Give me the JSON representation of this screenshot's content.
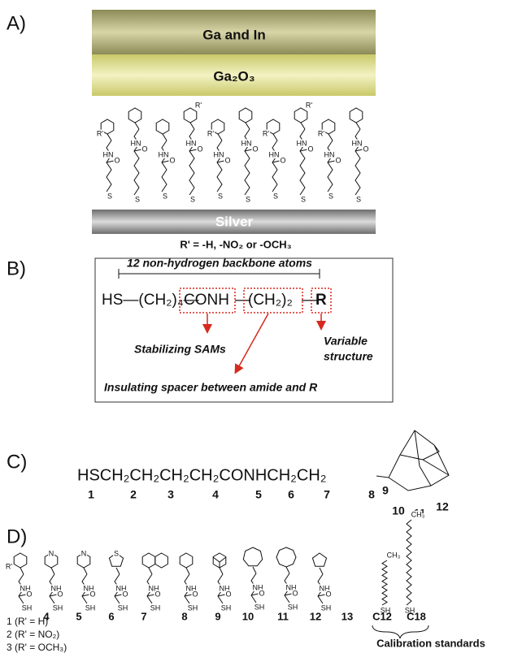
{
  "panel_a": {
    "label": "A)",
    "top_layer": "Ga and In",
    "oxide_layer": "Ga₂O₃",
    "substrate": "Silver",
    "r_prime_note": "R' = -H, -NO₂ or -OCH₃",
    "atoms": {
      "r": "R'",
      "nh": "HN",
      "o": "O",
      "s": "S"
    }
  },
  "panel_b": {
    "label": "B)",
    "bracket_label": "12 non-hydrogen backbone atoms",
    "formula": {
      "thiol": "HS—(CH₂)₄—",
      "amide": "CONH",
      "link": "—",
      "spacer": "(CH₂)₂",
      "r": "R"
    },
    "stabilizing": "Stabilizing SAMs",
    "variable": [
      "Variable",
      "structure"
    ],
    "insulating": "Insulating spacer between amide and R"
  },
  "panel_c": {
    "label": "C)",
    "chain": "HSCH₂CH₂CH₂CH₂CONHCH₂CH₂",
    "atom_numbers": [
      1,
      2,
      3,
      4,
      5,
      6,
      7,
      8,
      9,
      10,
      11,
      12
    ]
  },
  "panel_d": {
    "label": "D)",
    "compound_labels": [
      4,
      5,
      6,
      7,
      8,
      9,
      10,
      11,
      12,
      13,
      "C12",
      "C18"
    ],
    "variants": [
      "1 (R' = H)",
      "2 (R' = NO₂)",
      "3 (R' = OCH₃)"
    ],
    "calibration": "Calibration standards",
    "atoms": {
      "r": "R'",
      "nh": "NH",
      "o": "O",
      "sh": "SH",
      "n": "N",
      "s": "S",
      "ch3": "CH₃"
    }
  }
}
